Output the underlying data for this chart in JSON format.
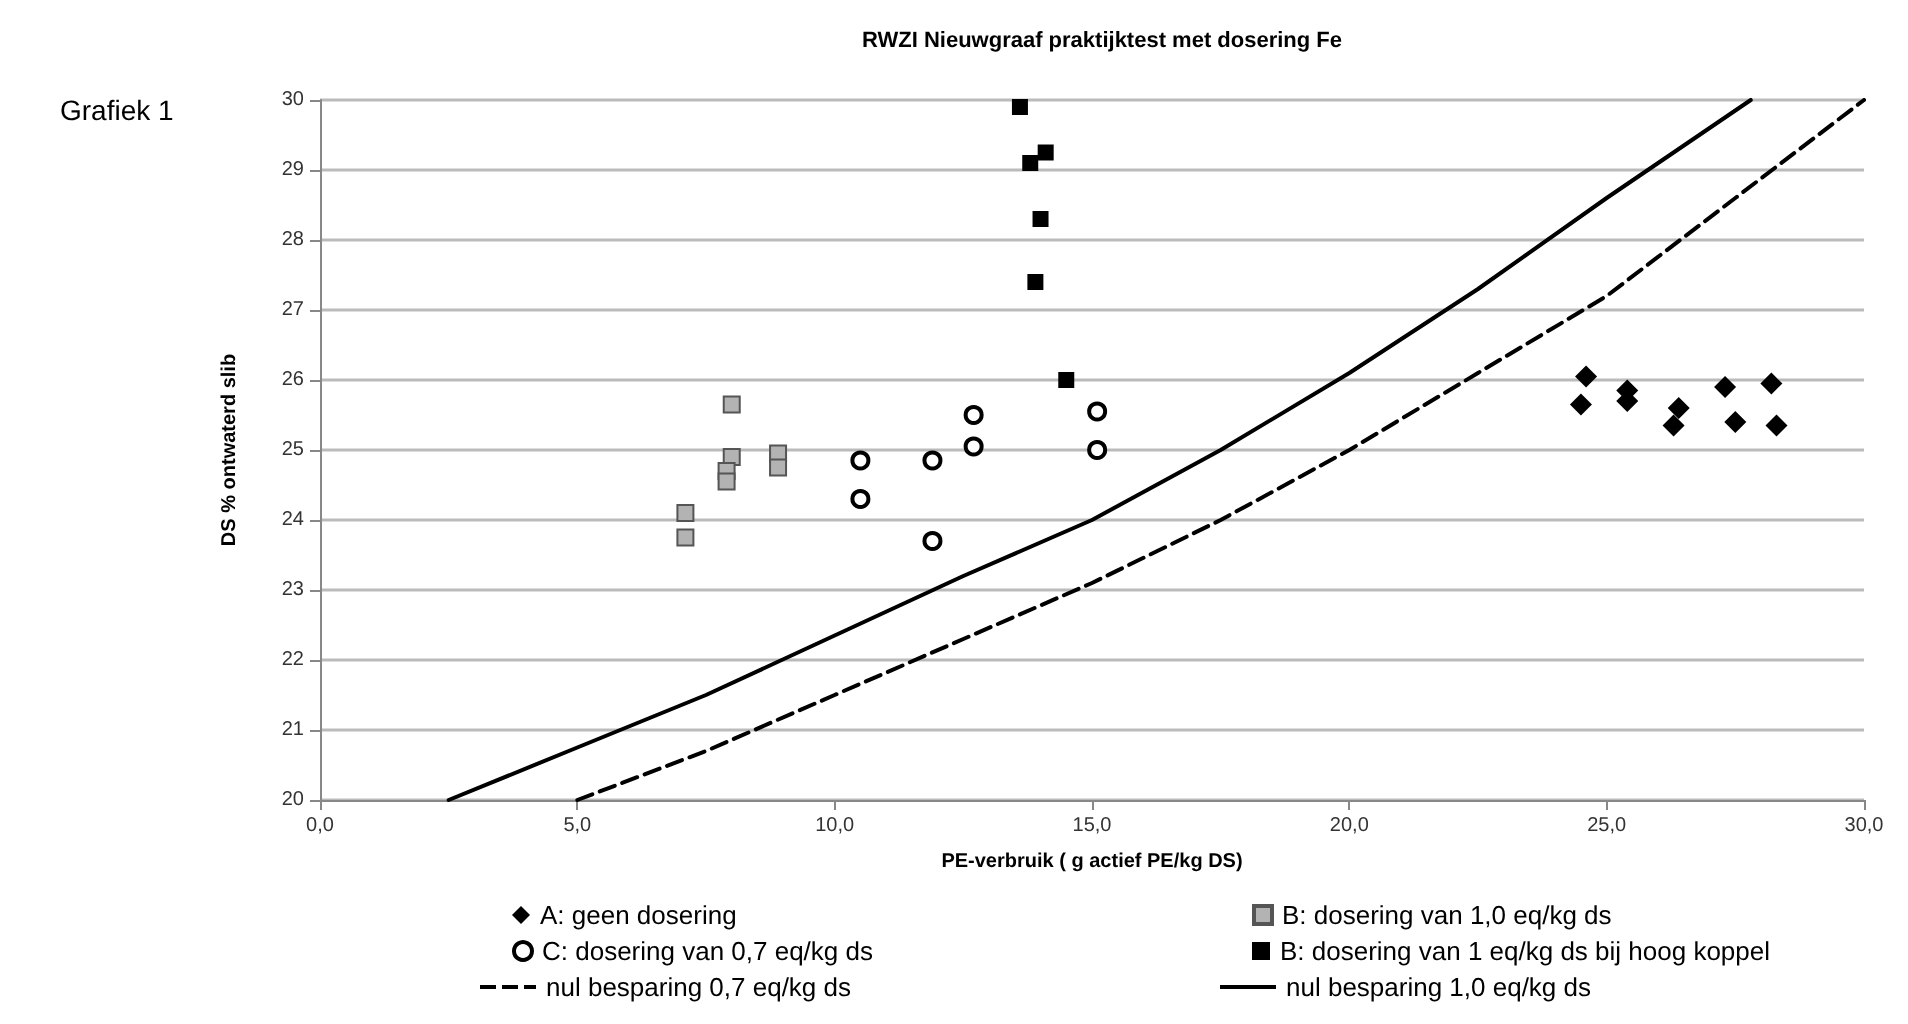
{
  "chart_data": {
    "type": "scatter",
    "title": "RWZI Nieuwgraaf praktijktest met dosering Fe",
    "xlabel": "PE-verbruik ( g actief PE/kg DS)",
    "ylabel": "DS % ontwaterd slib",
    "annotations": [
      "Grafiek 1"
    ],
    "xlim": [
      0,
      30
    ],
    "xticks": [
      {
        "value": 0,
        "label": "0,0"
      },
      {
        "value": 5,
        "label": "5,0"
      },
      {
        "value": 10,
        "label": "10,0"
      },
      {
        "value": 15,
        "label": "15,0"
      },
      {
        "value": 20,
        "label": "20,0"
      },
      {
        "value": 25,
        "label": "25,0"
      },
      {
        "value": 30,
        "label": "30,0"
      }
    ],
    "ylim": [
      20,
      30
    ],
    "yticks": [
      20,
      21,
      22,
      23,
      24,
      25,
      26,
      27,
      28,
      29,
      30
    ],
    "grid": "y",
    "legend": "bottom",
    "series": [
      {
        "name": "A: geen dosering",
        "type": "scatter",
        "marker": "diamond",
        "color": "#000000",
        "x": [
          24.6,
          24.5,
          25.4,
          25.4,
          26.3,
          26.4,
          27.3,
          27.5,
          28.2,
          28.3
        ],
        "values": [
          26.05,
          25.65,
          25.85,
          25.7,
          25.35,
          25.6,
          25.9,
          25.4,
          25.95,
          25.35
        ]
      },
      {
        "name": "B: dosering van 1,0 eq/kg ds",
        "type": "scatter",
        "marker": "square",
        "color": "#b3b3b3",
        "x": [
          7.1,
          7.1,
          8.0,
          8.0,
          7.9,
          7.9,
          8.9,
          8.9
        ],
        "values": [
          24.1,
          23.75,
          25.65,
          24.9,
          24.7,
          24.55,
          24.95,
          24.75
        ]
      },
      {
        "name": "C: dosering van 0,7 eq/kg ds",
        "type": "scatter",
        "marker": "circle",
        "color": "#000000",
        "x": [
          10.5,
          10.5,
          11.9,
          11.9,
          12.7,
          12.7,
          15.1,
          15.1
        ],
        "values": [
          24.85,
          24.3,
          24.85,
          23.7,
          25.5,
          25.05,
          25.55,
          25.0
        ]
      },
      {
        "name": "B: dosering van 1 eq/kg ds bij hoog koppel",
        "type": "scatter",
        "marker": "square",
        "color": "#000000",
        "x": [
          13.6,
          13.8,
          14.1,
          14.0,
          13.9,
          14.5
        ],
        "values": [
          29.9,
          29.1,
          29.25,
          28.3,
          27.4,
          26.0
        ]
      },
      {
        "name": "nul besparing 0,7 eq/kg ds",
        "type": "line",
        "marker": "none",
        "line_style": "dashed",
        "color": "#000000",
        "x": [
          5,
          7.5,
          10,
          12.5,
          15,
          17.5,
          20,
          22.5,
          25,
          27.5,
          30
        ],
        "values": [
          20,
          20.7,
          21.5,
          22.3,
          23.1,
          24.0,
          25.0,
          26.1,
          27.2,
          28.6,
          30
        ]
      },
      {
        "name": "nul besparing 1,0 eq/kg ds",
        "type": "line",
        "marker": "none",
        "line_style": "solid",
        "color": "#000000",
        "x": [
          2.5,
          5,
          7.5,
          10,
          12.5,
          15,
          17.5,
          20,
          22.5,
          25,
          27.8
        ],
        "values": [
          20,
          20.75,
          21.5,
          22.35,
          23.2,
          24.0,
          25.0,
          26.1,
          27.3,
          28.6,
          30
        ]
      }
    ]
  }
}
